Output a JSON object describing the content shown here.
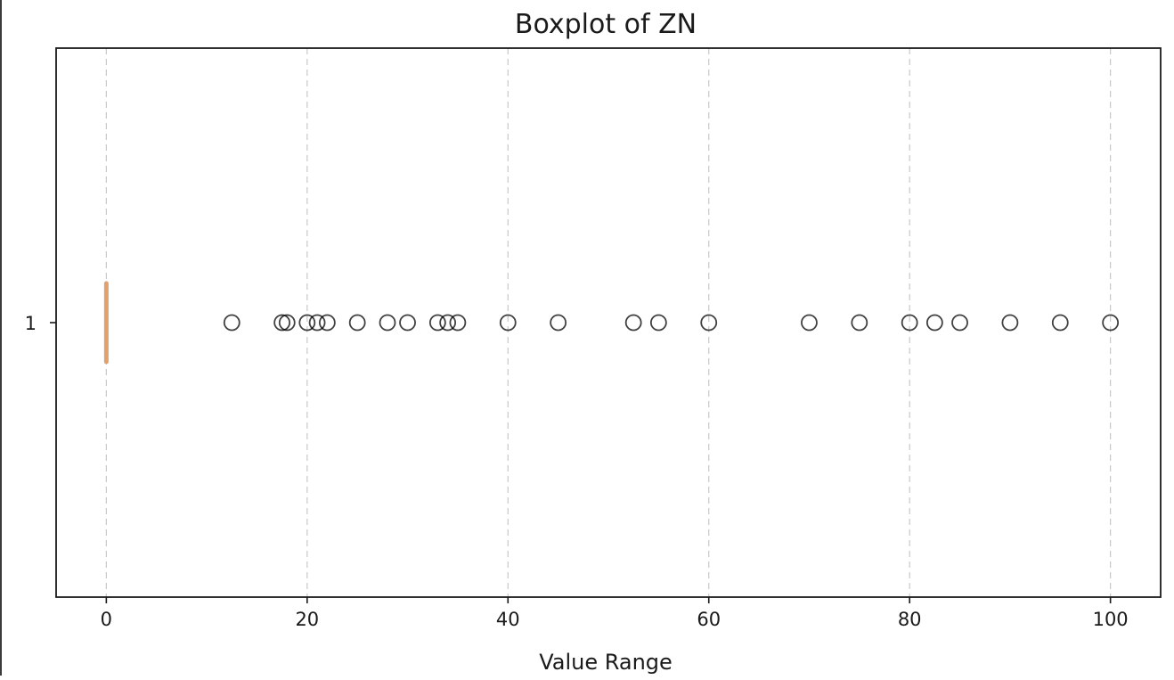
{
  "chart_data": {
    "type": "boxplot",
    "orientation": "horizontal",
    "title": "Boxplot of ZN",
    "xlabel": "Value Range",
    "ylabel": "",
    "xlim": [
      -5,
      105
    ],
    "xticks": [
      0,
      20,
      40,
      60,
      80,
      100
    ],
    "yticks": [
      "1"
    ],
    "grid": "x-dashed",
    "colors": {
      "median": "#e0a070",
      "box": "#404040",
      "flier": "#000000",
      "grid": "#c8c8c8"
    },
    "series": [
      {
        "label": "1",
        "box": {
          "q1": 0,
          "median": 0,
          "q3": 0,
          "whisker_low": 0,
          "whisker_high": 0
        },
        "fliers": [
          12.5,
          17.5,
          18,
          20,
          21,
          22,
          25,
          28,
          30,
          33,
          34,
          35,
          40,
          45,
          52.5,
          55,
          60,
          70,
          75,
          80,
          82.5,
          85,
          90,
          95,
          100
        ]
      }
    ]
  }
}
